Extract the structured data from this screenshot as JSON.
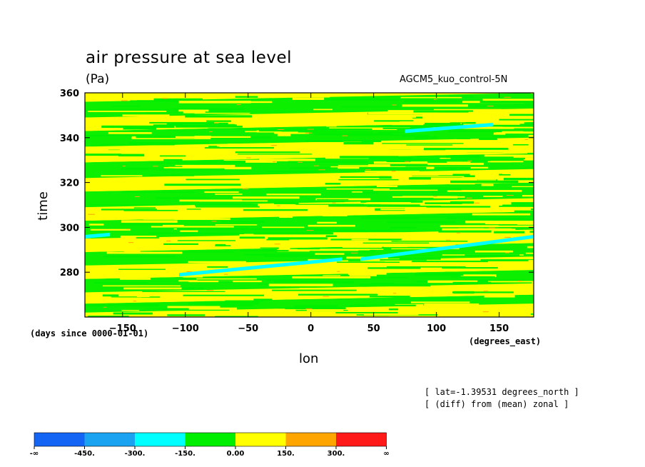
{
  "chart_data": {
    "type": "heatmap",
    "title": "air pressure at sea level",
    "units": "(Pa)",
    "dataset": "AGCM5_kuo_control-5N",
    "xlabel": "lon",
    "xlabel_units": "(degrees_east)",
    "ylabel": "time",
    "ylabel_units": "(days since 0000-01-01)",
    "x_range": [
      -180,
      177.5
    ],
    "y_range": [
      260,
      360
    ],
    "x_ticks": [
      -150,
      -100,
      -50,
      0,
      50,
      100,
      150
    ],
    "x_tick_labels": [
      "−150",
      "−100",
      "−50",
      "0",
      "50",
      "100",
      "150"
    ],
    "y_ticks": [
      280,
      300,
      320,
      340,
      360
    ],
    "y_tick_labels": [
      "280",
      "300",
      "320",
      "340",
      "360"
    ],
    "notes": [
      "[ lat=-1.39531 degrees_north ]",
      "[ (diff) from (mean) zonal ]"
    ],
    "colorbar": {
      "levels": [
        "-∞",
        "-450.",
        "-300.",
        "-150.",
        "0.00",
        "150.",
        "300.",
        "∞"
      ],
      "colors": [
        "#1565f5",
        "#1aa3f0",
        "#00ffff",
        "#00ee00",
        "#ffff00",
        "#ffa500",
        "#ff1a1a"
      ]
    },
    "bands": [
      {
        "t0": 262,
        "t1": 266,
        "level": "green"
      },
      {
        "t0": 266,
        "t1": 271,
        "level": "yellow"
      },
      {
        "t0": 271,
        "t1": 277,
        "level": "green"
      },
      {
        "t0": 277,
        "t1": 283,
        "level": "yellow"
      },
      {
        "t0": 283,
        "t1": 289,
        "level": "green"
      },
      {
        "t0": 289,
        "t1": 295,
        "level": "yellow"
      },
      {
        "t0": 295,
        "t1": 303,
        "level": "green"
      },
      {
        "t0": 303,
        "t1": 309,
        "level": "yellow"
      },
      {
        "t0": 309,
        "t1": 316,
        "level": "green"
      },
      {
        "t0": 316,
        "t1": 322,
        "level": "yellow"
      },
      {
        "t0": 322,
        "t1": 329,
        "level": "green"
      },
      {
        "t0": 329,
        "t1": 336,
        "level": "yellow"
      },
      {
        "t0": 336,
        "t1": 343,
        "level": "green"
      },
      {
        "t0": 343,
        "t1": 349,
        "level": "yellow"
      },
      {
        "t0": 349,
        "t1": 356,
        "level": "green"
      }
    ],
    "cyan_streaks": [
      {
        "x0": -105,
        "t0": 279,
        "x1": 25,
        "t1": 286
      },
      {
        "x0": 40,
        "t0": 286,
        "x1": 177,
        "t1": 296
      },
      {
        "x0": -180,
        "t0": 296,
        "x1": -160,
        "t1": 297
      },
      {
        "x0": 75,
        "t0": 343,
        "x1": 145,
        "t1": 346
      }
    ]
  }
}
